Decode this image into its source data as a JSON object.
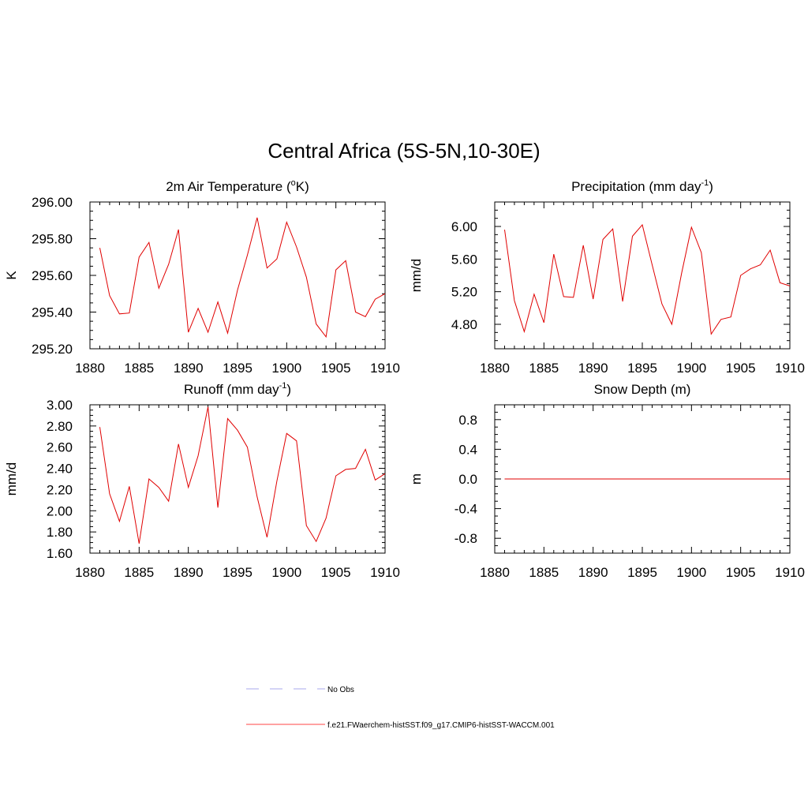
{
  "title": "Central Africa (5S-5N,10-30E)",
  "legend": {
    "items": [
      {
        "label": "No Obs",
        "color": "#aaaaee",
        "dash": "dashed"
      },
      {
        "label": "f.e21.FWaerchem-histSST.f09_g17.CMIP6-histSST-WACCM.001",
        "color": "#ff4444",
        "dash": "solid"
      }
    ]
  },
  "chart_data": [
    {
      "type": "line",
      "title": "2m Air Temperature (",
      "title_sup": "o",
      "title_after": "K)",
      "ylabel": "K",
      "xlim": [
        1880,
        1910
      ],
      "ylim": [
        295.2,
        296.0
      ],
      "xticks": [
        1880,
        1885,
        1890,
        1895,
        1900,
        1905,
        1910
      ],
      "yticks": [
        295.2,
        295.4,
        295.6,
        295.8,
        296.0
      ],
      "ytick_labels": [
        "295.20",
        "295.40",
        "295.60",
        "295.80",
        "296.00"
      ],
      "series": [
        {
          "color": "#e00000",
          "x": [
            1881,
            1882,
            1883,
            1884,
            1885,
            1886,
            1887,
            1888,
            1889,
            1890,
            1891,
            1892,
            1893,
            1894,
            1895,
            1896,
            1897,
            1898,
            1899,
            1900,
            1901,
            1902,
            1903,
            1904,
            1905,
            1906,
            1907,
            1908,
            1909,
            1910
          ],
          "values": [
            295.75,
            295.49,
            295.39,
            295.395,
            295.7,
            295.78,
            295.53,
            295.66,
            295.85,
            295.29,
            295.42,
            295.29,
            295.455,
            295.285,
            295.52,
            295.71,
            295.915,
            295.64,
            295.69,
            295.89,
            295.755,
            295.59,
            295.335,
            295.265,
            295.63,
            295.68,
            295.4,
            295.375,
            295.47,
            295.5
          ]
        }
      ]
    },
    {
      "type": "line",
      "title": "Precipitation (mm day",
      "title_sup": "-1",
      "title_after": ")",
      "ylabel": "mm/d",
      "xlim": [
        1880,
        1910
      ],
      "ylim": [
        4.5,
        6.3
      ],
      "xticks": [
        1880,
        1885,
        1890,
        1895,
        1900,
        1905,
        1910
      ],
      "yticks": [
        4.8,
        5.2,
        5.6,
        6.0
      ],
      "ytick_labels": [
        "4.80",
        "5.20",
        "5.60",
        "6.00"
      ],
      "series": [
        {
          "color": "#e00000",
          "x": [
            1881,
            1882,
            1883,
            1884,
            1885,
            1886,
            1887,
            1888,
            1889,
            1890,
            1891,
            1892,
            1893,
            1894,
            1895,
            1896,
            1897,
            1898,
            1899,
            1900,
            1901,
            1902,
            1903,
            1904,
            1905,
            1906,
            1907,
            1908,
            1909,
            1910
          ],
          "values": [
            5.96,
            5.09,
            4.71,
            5.17,
            4.82,
            5.66,
            5.14,
            5.13,
            5.77,
            5.11,
            5.84,
            5.97,
            5.08,
            5.88,
            6.02,
            5.53,
            5.05,
            4.8,
            5.43,
            5.99,
            5.68,
            4.68,
            4.86,
            4.89,
            5.4,
            5.48,
            5.53,
            5.71,
            5.31,
            5.27
          ]
        }
      ]
    },
    {
      "type": "line",
      "title": "Runoff (mm day",
      "title_sup": "-1",
      "title_after": ")",
      "ylabel": "mm/d",
      "xlim": [
        1880,
        1910
      ],
      "ylim": [
        1.6,
        3.0
      ],
      "xticks": [
        1880,
        1885,
        1890,
        1895,
        1900,
        1905,
        1910
      ],
      "yticks": [
        1.6,
        1.8,
        2.0,
        2.2,
        2.4,
        2.6,
        2.8,
        3.0
      ],
      "ytick_labels": [
        "1.60",
        "1.80",
        "2.00",
        "2.20",
        "2.40",
        "2.60",
        "2.80",
        "3.00"
      ],
      "series": [
        {
          "color": "#e00000",
          "x": [
            1881,
            1882,
            1883,
            1884,
            1885,
            1886,
            1887,
            1888,
            1889,
            1890,
            1891,
            1892,
            1893,
            1894,
            1895,
            1896,
            1897,
            1898,
            1899,
            1900,
            1901,
            1902,
            1903,
            1904,
            1905,
            1906,
            1907,
            1908,
            1909,
            1910
          ],
          "values": [
            2.79,
            2.16,
            1.9,
            2.23,
            1.69,
            2.3,
            2.22,
            2.09,
            2.63,
            2.22,
            2.52,
            2.98,
            2.03,
            2.87,
            2.76,
            2.6,
            2.13,
            1.75,
            2.28,
            2.73,
            2.66,
            1.86,
            1.71,
            1.93,
            2.33,
            2.39,
            2.4,
            2.58,
            2.29,
            2.35
          ]
        }
      ]
    },
    {
      "type": "line",
      "title": "Snow Depth (m)",
      "title_sup": "",
      "title_after": "",
      "ylabel": "m",
      "xlim": [
        1880,
        1910
      ],
      "ylim": [
        -1.0,
        1.0
      ],
      "xticks": [
        1880,
        1885,
        1890,
        1895,
        1900,
        1905,
        1910
      ],
      "yticks": [
        -0.8,
        -0.4,
        0.0,
        0.4,
        0.8
      ],
      "ytick_labels": [
        "-0.8",
        "-0.4",
        "0.0",
        "0.4",
        "0.8"
      ],
      "series": [
        {
          "color": "#e00000",
          "x": [
            1881,
            1882,
            1883,
            1884,
            1885,
            1886,
            1887,
            1888,
            1889,
            1890,
            1891,
            1892,
            1893,
            1894,
            1895,
            1896,
            1897,
            1898,
            1899,
            1900,
            1901,
            1902,
            1903,
            1904,
            1905,
            1906,
            1907,
            1908,
            1909,
            1910
          ],
          "values": [
            0,
            0,
            0,
            0,
            0,
            0,
            0,
            0,
            0,
            0,
            0,
            0,
            0,
            0,
            0,
            0,
            0,
            0,
            0,
            0,
            0,
            0,
            0,
            0,
            0,
            0,
            0,
            0,
            0,
            0
          ]
        }
      ]
    }
  ]
}
